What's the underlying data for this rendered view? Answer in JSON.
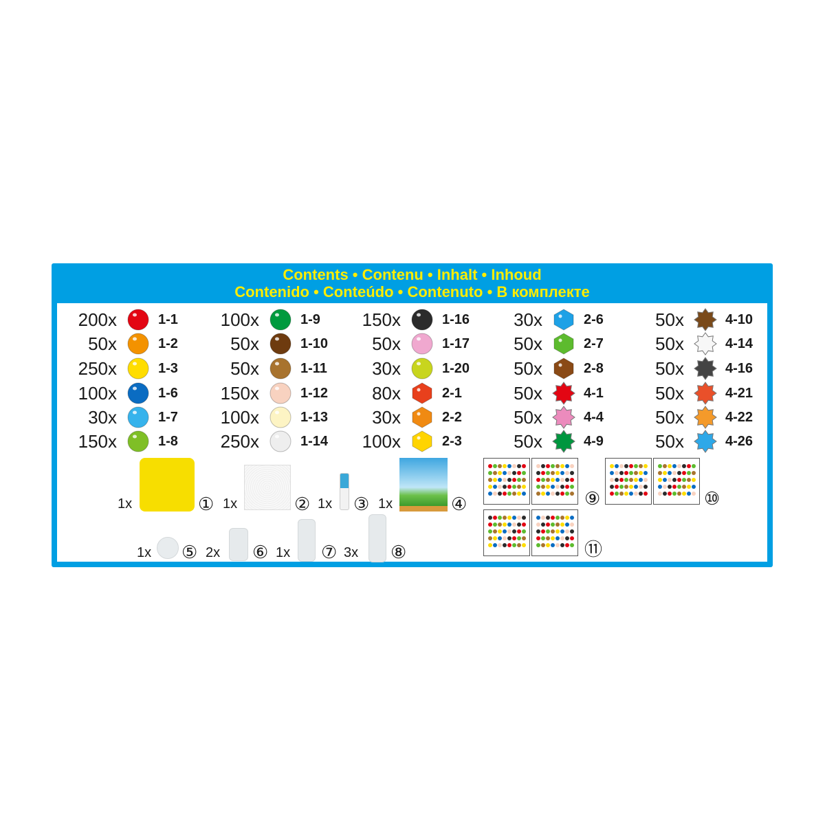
{
  "header": {
    "line1": "Contents • Contenu • Inhalt • Inhoud",
    "line2": "Contenido • Conteúdo • Contenuto • В комплекте"
  },
  "colors": {
    "panel": "#009fe3",
    "title": "#ffed00"
  },
  "columns": [
    [
      {
        "qty": "200x",
        "code": "1-1",
        "shape": "circle",
        "color": "#e30613"
      },
      {
        "qty": "50x",
        "code": "1-2",
        "shape": "circle",
        "color": "#f39200"
      },
      {
        "qty": "250x",
        "code": "1-3",
        "shape": "circle",
        "color": "#ffdd00"
      },
      {
        "qty": "100x",
        "code": "1-6",
        "shape": "circle",
        "color": "#0a6cc2"
      },
      {
        "qty": "30x",
        "code": "1-7",
        "shape": "circle",
        "color": "#36b3ec"
      },
      {
        "qty": "150x",
        "code": "1-8",
        "shape": "circle",
        "color": "#7fbf26"
      }
    ],
    [
      {
        "qty": "100x",
        "code": "1-9",
        "shape": "circle",
        "color": "#009a3e"
      },
      {
        "qty": "50x",
        "code": "1-10",
        "shape": "circle",
        "color": "#6e3b0f"
      },
      {
        "qty": "50x",
        "code": "1-11",
        "shape": "circle",
        "color": "#a8732e"
      },
      {
        "qty": "150x",
        "code": "1-12",
        "shape": "circle",
        "color": "#f8d2c0"
      },
      {
        "qty": "100x",
        "code": "1-13",
        "shape": "circle",
        "color": "#fdf4c4"
      },
      {
        "qty": "250x",
        "code": "1-14",
        "shape": "circle",
        "color": "#eeeeee"
      }
    ],
    [
      {
        "qty": "150x",
        "code": "1-16",
        "shape": "circle",
        "color": "#2b2b2b"
      },
      {
        "qty": "50x",
        "code": "1-17",
        "shape": "circle",
        "color": "#f0a8cf"
      },
      {
        "qty": "30x",
        "code": "1-20",
        "shape": "circle",
        "color": "#c8d51e"
      },
      {
        "qty": "80x",
        "code": "2-1",
        "shape": "hexagon",
        "color": "#e8401c"
      },
      {
        "qty": "30x",
        "code": "2-2",
        "shape": "hexagon",
        "color": "#f08a12"
      },
      {
        "qty": "100x",
        "code": "2-3",
        "shape": "hexagon",
        "color": "#ffd400"
      }
    ],
    [
      {
        "qty": "30x",
        "code": "2-6",
        "shape": "hexagon",
        "color": "#1ea1e6"
      },
      {
        "qty": "50x",
        "code": "2-7",
        "shape": "hexagon",
        "color": "#5dbb2e"
      },
      {
        "qty": "50x",
        "code": "2-8",
        "shape": "hexagon",
        "color": "#8a4a16"
      },
      {
        "qty": "50x",
        "code": "4-1",
        "shape": "star",
        "color": "#e30613"
      },
      {
        "qty": "50x",
        "code": "4-4",
        "shape": "star",
        "color": "#ec8bbd"
      },
      {
        "qty": "50x",
        "code": "4-9",
        "shape": "star",
        "color": "#00963f"
      }
    ],
    [
      {
        "qty": "50x",
        "code": "4-10",
        "shape": "star",
        "color": "#7a4a1a"
      },
      {
        "qty": "50x",
        "code": "4-14",
        "shape": "star",
        "color": "#f7f7f7"
      },
      {
        "qty": "50x",
        "code": "4-16",
        "shape": "star",
        "color": "#444444"
      },
      {
        "qty": "50x",
        "code": "4-21",
        "shape": "star",
        "color": "#e9502a"
      },
      {
        "qty": "50x",
        "code": "4-22",
        "shape": "star",
        "color": "#f49a2a"
      },
      {
        "qty": "50x",
        "code": "4-26",
        "shape": "star",
        "color": "#2ea8e8"
      }
    ]
  ],
  "accessories": [
    {
      "qty": "1x",
      "num": "①",
      "item": "yellow-pegboard"
    },
    {
      "qty": "1x",
      "num": "②",
      "item": "clear-pegboard"
    },
    {
      "qty": "1x",
      "num": "③",
      "item": "sprayer"
    },
    {
      "qty": "1x",
      "num": "④",
      "item": "backdrop-stand"
    },
    {
      "qty": "1x",
      "num": "⑤",
      "item": "bead-pen-tip"
    },
    {
      "qty": "2x",
      "num": "⑥",
      "item": "stand-connector"
    },
    {
      "qty": "1x",
      "num": "⑦",
      "item": "stand-connector-long"
    },
    {
      "qty": "3x",
      "num": "⑧",
      "item": "stand-connector-tall"
    }
  ],
  "templates": [
    {
      "num": "⑨"
    },
    {
      "num": "⑩"
    },
    {
      "num": "⑪"
    }
  ]
}
